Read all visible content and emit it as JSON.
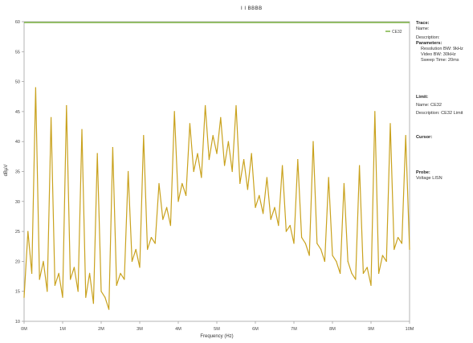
{
  "chart_data": {
    "type": "line",
    "title": "I I BBBB",
    "xlabel": "Frequency (Hz)",
    "ylabel": "dBµV",
    "ylim": [
      10,
      60
    ],
    "xlim": [
      0,
      10
    ],
    "y_ticks": [
      "10",
      "15",
      "20",
      "25",
      "30",
      "35",
      "40",
      "45",
      "50",
      "55",
      "60"
    ],
    "x_ticks": [
      "0M",
      "1M",
      "2M",
      "3M",
      "4M",
      "5M",
      "6M",
      "7M",
      "8M",
      "9M",
      "10M"
    ],
    "grid": false,
    "legend_position": "top-right",
    "series": [
      {
        "name": "CE32",
        "color": "#c9a21e",
        "x": [
          0.0,
          0.1,
          0.2,
          0.3,
          0.4,
          0.5,
          0.6,
          0.7,
          0.8,
          0.9,
          1.0,
          1.1,
          1.2,
          1.3,
          1.4,
          1.5,
          1.6,
          1.7,
          1.8,
          1.9,
          2.0,
          2.1,
          2.2,
          2.3,
          2.4,
          2.5,
          2.6,
          2.7,
          2.8,
          2.9,
          3.0,
          3.1,
          3.2,
          3.3,
          3.4,
          3.5,
          3.6,
          3.7,
          3.8,
          3.9,
          4.0,
          4.1,
          4.2,
          4.3,
          4.4,
          4.5,
          4.6,
          4.7,
          4.8,
          4.9,
          5.0,
          5.1,
          5.2,
          5.3,
          5.4,
          5.5,
          5.6,
          5.7,
          5.8,
          5.9,
          6.0,
          6.1,
          6.2,
          6.3,
          6.4,
          6.5,
          6.6,
          6.7,
          6.8,
          6.9,
          7.0,
          7.1,
          7.2,
          7.3,
          7.4,
          7.5,
          7.6,
          7.7,
          7.8,
          7.9,
          8.0,
          8.1,
          8.2,
          8.3,
          8.4,
          8.5,
          8.6,
          8.7,
          8.8,
          8.9,
          9.0,
          9.1,
          9.2,
          9.3,
          9.4,
          9.5,
          9.6,
          9.7,
          9.8,
          9.9,
          10.0
        ],
        "values": [
          14,
          25,
          18,
          49,
          17,
          20,
          15,
          44,
          16,
          18,
          14,
          46,
          17,
          19,
          15,
          42,
          14,
          18,
          13,
          38,
          15,
          14,
          12,
          39,
          16,
          18,
          17,
          35,
          20,
          22,
          19,
          41,
          22,
          24,
          23,
          33,
          27,
          29,
          26,
          45,
          30,
          33,
          31,
          43,
          35,
          38,
          34,
          46,
          37,
          41,
          38,
          44,
          36,
          40,
          35,
          46,
          33,
          37,
          32,
          38,
          29,
          31,
          28,
          34,
          27,
          29,
          26,
          36,
          25,
          26,
          23,
          37,
          24,
          23,
          21,
          40,
          23,
          22,
          20,
          34,
          21,
          20,
          18,
          33,
          20,
          18,
          17,
          36,
          18,
          19,
          16,
          45,
          18,
          21,
          20,
          43,
          22,
          24,
          23,
          41,
          22
        ]
      }
    ]
  },
  "side_panel": {
    "trace_header": "Trace:",
    "trace_name": "Name:",
    "trace_description": "Description:",
    "parameters_header": "Parameters:",
    "param_resolution": "Resolution BW: 9kHz",
    "param_video": "Video BW: 30kHz",
    "param_sweep": "Sweep Time: 20ms",
    "limit_header": "Limit:",
    "limit_name": "Name: CE32",
    "limit_description": "Description: CE32 Limit",
    "cursor_header": "Cursor:",
    "probe_header": "Probe:",
    "probe_value": "Voltage LISN"
  }
}
